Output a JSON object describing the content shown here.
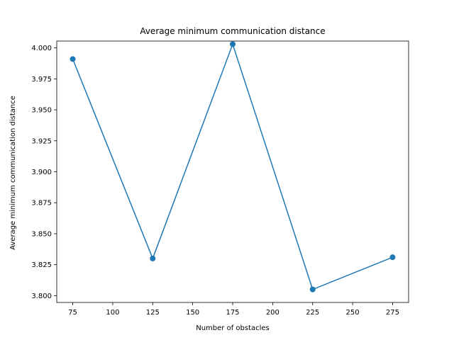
{
  "chart_data": {
    "type": "line",
    "title": "Average minimum communication distance",
    "xlabel": "Number of obstacles",
    "ylabel": "Average minimum communication distance",
    "x": [
      75,
      125,
      175,
      225,
      275
    ],
    "series": [
      {
        "values": [
          3.991,
          3.83,
          4.003,
          3.805,
          3.831
        ],
        "color": "#1f77b4",
        "marker": "circle"
      }
    ],
    "xlim": [
      65,
      285
    ],
    "ylim": [
      3.7945,
      4.0055
    ],
    "xticks": [
      75,
      100,
      125,
      150,
      175,
      200,
      225,
      250,
      275
    ],
    "yticks": [
      3.8,
      3.825,
      3.85,
      3.875,
      3.9,
      3.925,
      3.95,
      3.975,
      4.0
    ],
    "ytick_decimals": 3,
    "grid": false,
    "legend": "none"
  }
}
